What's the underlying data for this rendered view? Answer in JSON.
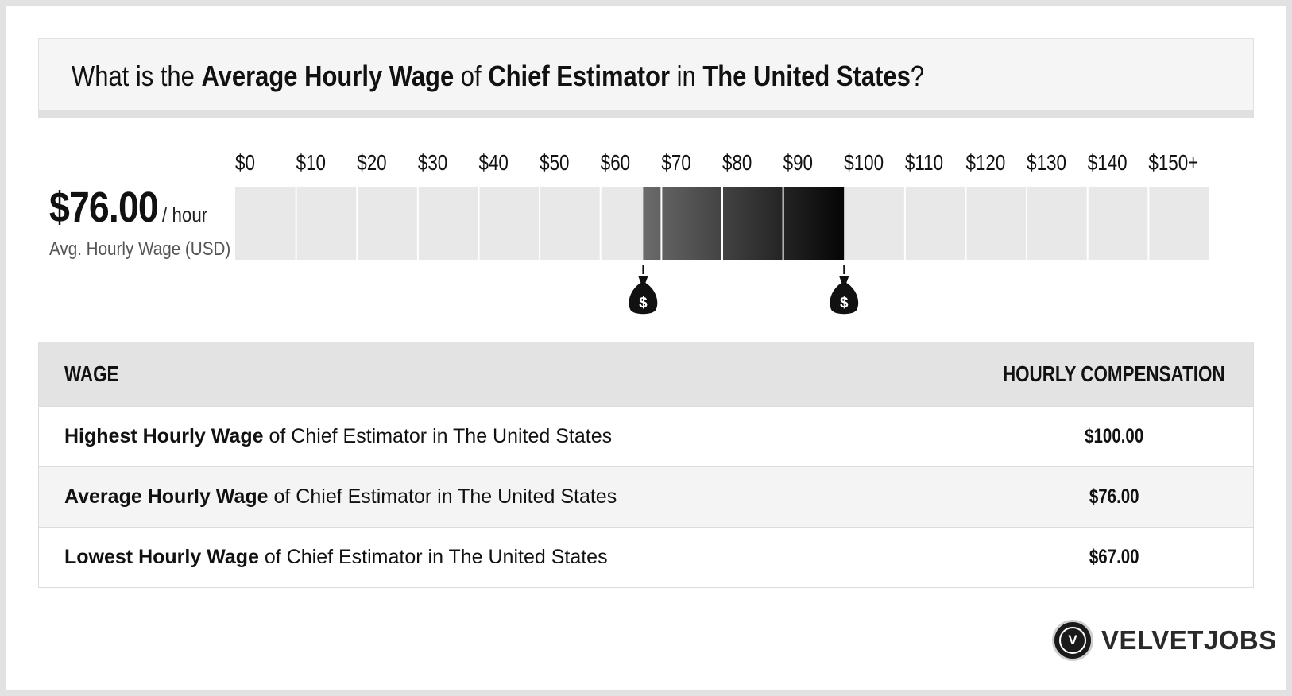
{
  "question": {
    "prefix": "What is the ",
    "metric": "Average Hourly Wage",
    "of": " of ",
    "job": "Chief Estimator",
    "in": " in ",
    "location": "The United States",
    "suffix": "?"
  },
  "summary": {
    "amount": "$76.00",
    "unit": "/ hour",
    "caption": "Avg. Hourly Wage (USD)"
  },
  "chart_data": {
    "type": "bar",
    "tick_labels": [
      "$0",
      "$10",
      "$20",
      "$30",
      "$40",
      "$50",
      "$60",
      "$70",
      "$80",
      "$90",
      "$100",
      "$110",
      "$120",
      "$130",
      "$140",
      "$150+"
    ],
    "ticks": [
      0,
      10,
      20,
      30,
      40,
      50,
      60,
      70,
      80,
      90,
      100,
      110,
      120,
      130,
      140,
      150
    ],
    "xlim": [
      0,
      160
    ],
    "range_low": 67,
    "range_high": 100,
    "average": 76,
    "markers": [
      67,
      100
    ],
    "marker_icon": "money-bag-icon",
    "colors": {
      "background_cell": "#e8e8e8",
      "range_gradient": [
        "#6b6b6b",
        "#050505"
      ]
    }
  },
  "table": {
    "headers": {
      "wage": "WAGE",
      "compensation": "HOURLY COMPENSATION"
    },
    "rows": [
      {
        "bold": "Highest Hourly Wage",
        "rest": " of Chief Estimator in The United States",
        "value": "$100.00"
      },
      {
        "bold": "Average Hourly Wage",
        "rest": " of Chief Estimator in The United States",
        "value": "$76.00"
      },
      {
        "bold": "Lowest Hourly Wage",
        "rest": " of Chief Estimator in The United States",
        "value": "$67.00"
      }
    ]
  },
  "logo": {
    "badge": "V",
    "text": "VELVETJOBS"
  }
}
